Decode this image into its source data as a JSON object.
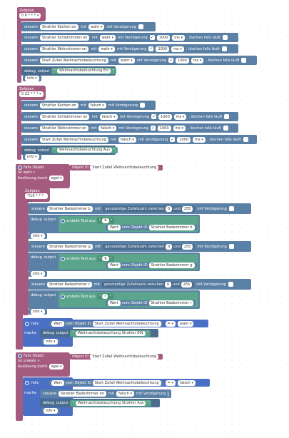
{
  "blocks": {
    "zeitplan": "Zeitplan",
    "steuere": "steuere",
    "mit": "mit",
    "mit_verz": "mit Verzögerung",
    "ms": "ms",
    "loeschen": ", löschen falls läuft",
    "debug": "debug",
    "output": "output",
    "info": "info",
    "falls_objekt": "Falls Objekt",
    "ist_wahr": "ist wahr",
    "ist_unwahr": "ist unwahr",
    "ausloesung": "Auslösung durch",
    "egal": "egal",
    "objekt_id": "Objekt ID",
    "falls": "falls",
    "mache": "mache",
    "wert": "Wert",
    "vom_objekt": "vom Objekt ID",
    "eq": "=",
    "ganzzahl": "ganzzahlige Zufallszahl zwischen",
    "und": "und",
    "erstelle_text": "erstelle Text aus",
    "quote_open": "“",
    "quote_close": "”"
  },
  "schedules": {
    "morning_cron": "0 6 * * *",
    "evening_cron": "0 22 * * *",
    "random_cron": "*/10 * * * *"
  },
  "devices": {
    "kuechen": "Strahler Küchen on",
    "schlaf": "Strahler Schlafzimmer on",
    "wohn": "Strahler Wohnzimmer on",
    "start": "Start Zufall Weihnachtsbeleuchtung",
    "bad_b": "Strahler Badezimmer b",
    "bad_g": "Strahler Badezimmer g",
    "bad_r": "Strahler Badezimmer r",
    "bad_on": "Strahler Badezimmer on"
  },
  "values": {
    "wahr": "wahr",
    "falsch": "falsch",
    "delay": "1000",
    "rand_min": "0",
    "rand_max": "255"
  },
  "letters": {
    "b": "b",
    "g": "g",
    "r": "r"
  },
  "messages": {
    "ein": "Weihnachtsbeleuchtung Ein",
    "aus": "Weihnachtsbeleuchtung Aus",
    "strahler_ein": "Weihnachtsbeleuchtung Strahler EIN",
    "strahler_aus": "Weihnachtsbeleuchtung Strahler Aus"
  },
  "colors": {
    "event": "#a55b80",
    "action": "#5b80a5",
    "text": "#5ba58c",
    "logic": "#4b6fc4"
  }
}
